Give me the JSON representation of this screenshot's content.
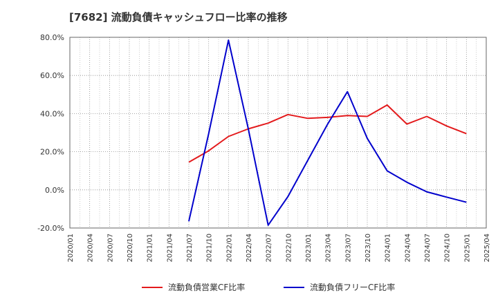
{
  "chart_data": {
    "type": "line",
    "title": "[7682]  流動負債キャッシュフロー比率の推移",
    "xlabel": "",
    "ylabel": "",
    "ylim": [
      -20,
      80
    ],
    "grid": true,
    "legend_position": "bottom",
    "x_ticks": [
      "2020/01",
      "2020/04",
      "2020/07",
      "2020/10",
      "2021/01",
      "2021/04",
      "2021/07",
      "2021/10",
      "2022/01",
      "2022/04",
      "2022/07",
      "2022/10",
      "2023/01",
      "2023/04",
      "2023/07",
      "2023/10",
      "2024/01",
      "2024/04",
      "2024/07",
      "2024/10",
      "2025/01",
      "2025/04"
    ],
    "y_ticks": [
      "-20.0%",
      "0.0%",
      "20.0%",
      "40.0%",
      "60.0%",
      "80.0%"
    ],
    "y_tick_values": [
      -20,
      0,
      20,
      40,
      60,
      80
    ],
    "series": [
      {
        "name": "流動負債営業CF比率",
        "color": "#e31a1c",
        "x": [
          "2021/07",
          "2021/10",
          "2022/01",
          "2022/04",
          "2022/07",
          "2022/10",
          "2023/01",
          "2023/04",
          "2023/07",
          "2023/10",
          "2024/01",
          "2024/04",
          "2024/07",
          "2024/10",
          "2025/01"
        ],
        "values": [
          14.5,
          20.5,
          28.0,
          32.0,
          35.0,
          39.5,
          37.5,
          38.0,
          39.0,
          38.5,
          44.5,
          34.5,
          38.5,
          33.5,
          29.5
        ]
      },
      {
        "name": "流動負債フリーCF比率",
        "color": "#0000cc",
        "x": [
          "2021/07",
          "2021/10",
          "2022/01",
          "2022/04",
          "2022/07",
          "2022/10",
          "2023/01",
          "2023/04",
          "2023/07",
          "2023/10",
          "2024/01",
          "2024/04",
          "2024/07",
          "2024/10",
          "2025/01"
        ],
        "values": [
          -16.5,
          29.5,
          78.5,
          32.0,
          -18.5,
          -3.5,
          15.5,
          34.5,
          51.5,
          27.0,
          10.0,
          4.0,
          -1.0,
          -3.8,
          -6.5
        ]
      }
    ]
  }
}
